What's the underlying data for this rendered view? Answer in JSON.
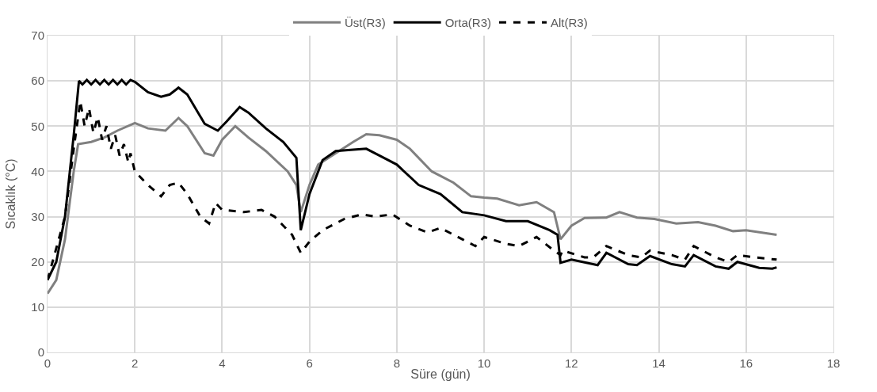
{
  "chart_data": {
    "type": "line",
    "xlabel": "Süre (gün)",
    "ylabel": "Sıcaklık (°C)",
    "xlim": [
      0,
      18
    ],
    "xticks": [
      0,
      2,
      4,
      6,
      8,
      10,
      12,
      14,
      16,
      18
    ],
    "ylim": [
      0,
      70
    ],
    "yticks": [
      0,
      10,
      20,
      30,
      40,
      50,
      60,
      70
    ],
    "grid": true,
    "legend": "top",
    "marker": "none",
    "series": [
      {
        "name": "Üst(R3)",
        "color": "#808080",
        "line_style": "solid",
        "x": [
          0,
          0.2,
          0.4,
          0.6,
          0.7,
          1.0,
          1.3,
          1.6,
          2.0,
          2.3,
          2.7,
          3.0,
          3.2,
          3.6,
          3.8,
          4.0,
          4.3,
          4.6,
          5.0,
          5.5,
          5.7,
          5.8,
          6.0,
          6.2,
          6.6,
          7.0,
          7.3,
          7.6,
          8.0,
          8.3,
          8.8,
          9.3,
          9.7,
          10.0,
          10.3,
          10.8,
          11.2,
          11.6,
          11.75,
          12.0,
          12.3,
          12.8,
          13.1,
          13.5,
          13.9,
          14.4,
          14.9,
          15.3,
          15.7,
          16.0,
          16.7
        ],
        "values": [
          13,
          16,
          25,
          40,
          46,
          46.5,
          47.5,
          49,
          50.7,
          49.5,
          49,
          51.8,
          50,
          44,
          43.5,
          47,
          50,
          47.5,
          44.5,
          40,
          37,
          31,
          37,
          41.5,
          44,
          46.5,
          48.2,
          48,
          47,
          45,
          40,
          37.5,
          34.5,
          34.2,
          34,
          32.5,
          33.2,
          31,
          25,
          28,
          29.7,
          29.8,
          31,
          29.8,
          29.5,
          28.5,
          28.8,
          28,
          26.8,
          27,
          26
        ]
      },
      {
        "name": "Orta(R3)",
        "color": "#000000",
        "line_style": "solid",
        "x": [
          0,
          0.2,
          0.4,
          0.6,
          0.72,
          0.8,
          0.9,
          1.0,
          1.1,
          1.2,
          1.3,
          1.4,
          1.5,
          1.6,
          1.7,
          1.8,
          1.9,
          2.0,
          2.3,
          2.6,
          2.8,
          3.0,
          3.2,
          3.6,
          3.9,
          4.1,
          4.4,
          4.6,
          5.0,
          5.4,
          5.7,
          5.8,
          6.0,
          6.3,
          6.6,
          7.0,
          7.3,
          7.6,
          8.0,
          8.5,
          9.0,
          9.5,
          10.0,
          10.5,
          11.0,
          11.5,
          11.68,
          11.75,
          12.0,
          12.6,
          12.8,
          13.3,
          13.5,
          13.8,
          14.3,
          14.6,
          14.8,
          15.3,
          15.6,
          15.8,
          16.3,
          16.6,
          16.7
        ],
        "values": [
          16,
          20,
          30,
          48,
          60,
          59.2,
          60.2,
          59.2,
          60.2,
          59.2,
          60.2,
          59.2,
          60.2,
          59.2,
          60.2,
          59.2,
          60.2,
          59.8,
          57.5,
          56.5,
          57,
          58.5,
          57,
          50.5,
          49,
          51,
          54.2,
          53,
          49.5,
          46.5,
          43,
          27,
          35,
          42.5,
          44.5,
          44.8,
          45,
          43.5,
          41.5,
          37,
          35,
          31,
          30.3,
          29,
          29,
          27,
          26,
          19.8,
          20.5,
          19.3,
          22,
          19.5,
          19.3,
          21.3,
          19.5,
          19,
          21.5,
          19,
          18.5,
          20,
          18.7,
          18.5,
          18.8
        ]
      },
      {
        "name": "Alt(R3)",
        "color": "#000000",
        "line_style": "dashed",
        "x": [
          0,
          0.4,
          0.6,
          0.75,
          0.85,
          0.95,
          1.05,
          1.15,
          1.25,
          1.35,
          1.45,
          1.55,
          1.65,
          1.75,
          1.85,
          1.9,
          2.0,
          2.3,
          2.6,
          2.8,
          3.0,
          3.2,
          3.5,
          3.7,
          3.85,
          4.0,
          4.5,
          4.9,
          5.2,
          5.6,
          5.8,
          6.0,
          6.3,
          6.8,
          7.2,
          7.5,
          7.9,
          8.3,
          8.7,
          9.0,
          9.5,
          9.8,
          10.0,
          10.5,
          10.8,
          11.2,
          11.6,
          11.75,
          11.8,
          12.3,
          12.5,
          12.8,
          13.3,
          13.6,
          13.8,
          14.3,
          14.6,
          14.8,
          15.3,
          15.6,
          15.8,
          16.2,
          16.7
        ],
        "values": [
          16,
          30,
          45,
          55.5,
          50,
          54,
          48.5,
          52,
          47,
          50,
          45,
          48,
          43.5,
          46,
          42,
          44,
          40,
          37,
          34.5,
          37,
          37.5,
          35,
          30,
          28.5,
          33,
          31.5,
          31,
          31.5,
          30,
          26,
          22,
          24.5,
          27,
          29.5,
          30.5,
          30,
          30.5,
          28,
          26.5,
          27.5,
          25,
          23.5,
          25.5,
          24,
          23.5,
          25.5,
          22.5,
          21.5,
          22.5,
          21,
          21,
          23.5,
          21.5,
          21,
          22.5,
          21.5,
          20.5,
          23.5,
          21,
          20,
          21.5,
          21,
          20.5
        ]
      }
    ]
  }
}
